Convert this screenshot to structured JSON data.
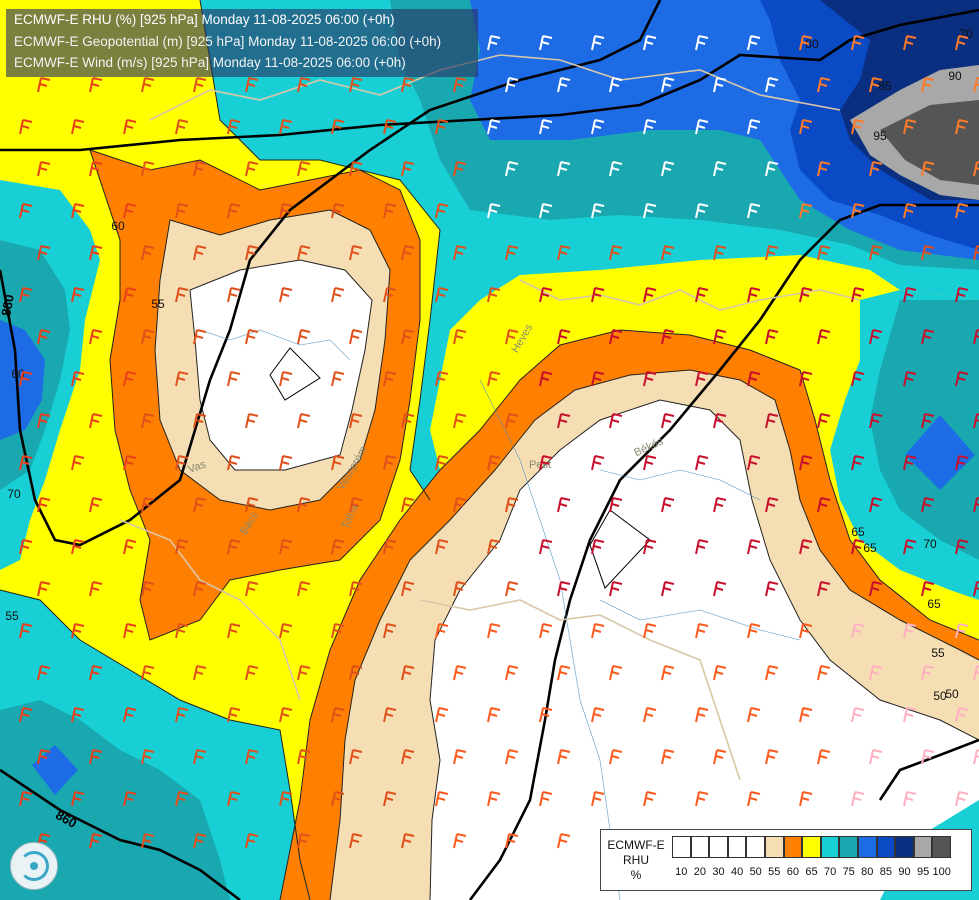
{
  "header": {
    "line1": "ECMWF-E RHU (%) [925 hPa] Monday 11-08-2025 06:00 (+0h)",
    "line2": "ECMWF-E Geopotential (m) [925 hPa] Monday 11-08-2025 06:00 (+0h)",
    "line3": "ECMWF-E Wind (m/s) [925 hPa] Monday 11-08-2025 06:00 (+0h)"
  },
  "legend": {
    "name_line1": "ECMWF-E",
    "name_line2": "RHU",
    "name_line3": "%",
    "ticks": [
      "10",
      "20",
      "30",
      "40",
      "50",
      "55",
      "60",
      "65",
      "70",
      "75",
      "80",
      "85",
      "90",
      "95",
      "100"
    ],
    "colors": [
      "#ffffff",
      "#ffffff",
      "#ffffff",
      "#ffffff",
      "#ffffff",
      "#f5deb3",
      "#ff8000",
      "#ffff00",
      "#19cfd6",
      "#1aa8b0",
      "#1e6be6",
      "#0a4ac4",
      "#0a2f80",
      "#a8a8a8",
      "#555555"
    ]
  },
  "contour_labels": {
    "geopotential": [
      "880",
      "860"
    ],
    "rhu": [
      "80",
      "85",
      "90",
      "95",
      "60",
      "55",
      "65",
      "70",
      "65",
      "70",
      "55",
      "50",
      "60",
      "70",
      "55",
      "65",
      "50"
    ]
  },
  "place_labels": [
    "Heves",
    "Pest",
    "Békés",
    "Vas",
    "Tolna",
    "Veszprém",
    "Bács"
  ],
  "colors": {
    "rh_white": "#ffffff",
    "rh_55": "#f5deb3",
    "rh_60": "#ff8000",
    "rh_65": "#ffff00",
    "rh_70": "#19cfd6",
    "rh_75": "#1aa8b0",
    "rh_80": "#1e6be6",
    "rh_85": "#0a4ac4",
    "rh_90": "#0a2f80",
    "rh_95": "#a8a8a8",
    "rh_100": "#555555"
  }
}
